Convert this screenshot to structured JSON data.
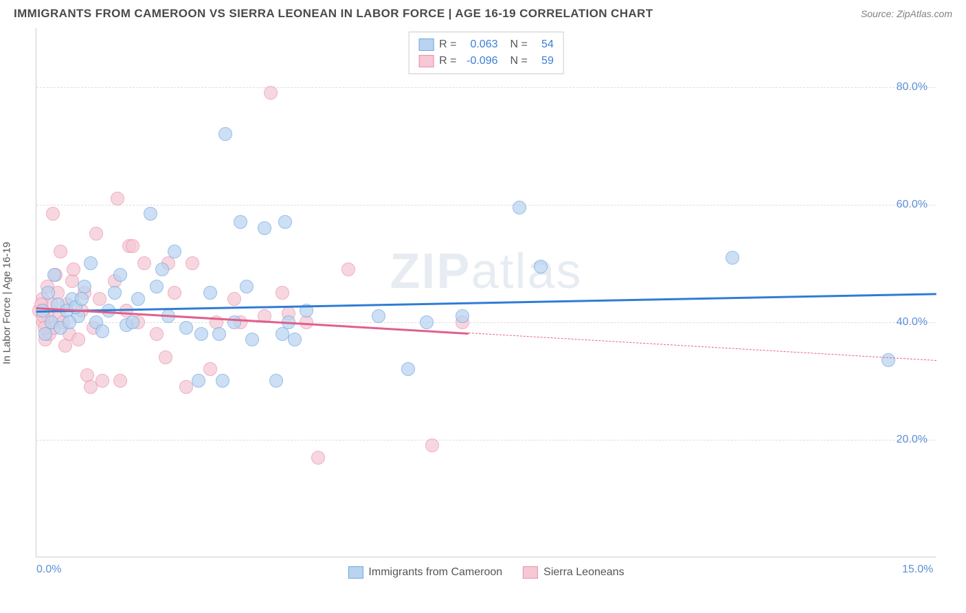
{
  "header": {
    "title": "IMMIGRANTS FROM CAMEROON VS SIERRA LEONEAN IN LABOR FORCE | AGE 16-19 CORRELATION CHART",
    "source": "Source: ZipAtlas.com"
  },
  "chart": {
    "type": "scatter",
    "ylabel": "In Labor Force | Age 16-19",
    "watermark": {
      "part1": "ZIP",
      "part2": "atlas"
    },
    "background_color": "#ffffff",
    "grid_color": "#dddddd",
    "axis_color": "#cccccc",
    "xlim": [
      0,
      15
    ],
    "ylim": [
      0,
      90
    ],
    "xticks": [
      {
        "value": 0,
        "label": "0.0%"
      },
      {
        "value": 15,
        "label": "15.0%"
      }
    ],
    "yticks": [
      {
        "value": 20,
        "label": "20.0%"
      },
      {
        "value": 40,
        "label": "40.0%"
      },
      {
        "value": 60,
        "label": "60.0%"
      },
      {
        "value": 80,
        "label": "80.0%"
      }
    ],
    "marker_radius": 10,
    "series": {
      "cameroon": {
        "label": "Immigrants from Cameroon",
        "fill_color": "#b9d3f0",
        "border_color": "#6fa6e0",
        "trend_color": "#2e7cd6",
        "trend": {
          "x1": 0,
          "y1": 42.0,
          "x2": 15,
          "y2": 45.0,
          "solid_until_x": 15
        },
        "points": [
          [
            0.1,
            42
          ],
          [
            0.15,
            38
          ],
          [
            0.2,
            45
          ],
          [
            0.25,
            40
          ],
          [
            0.3,
            48
          ],
          [
            0.35,
            43
          ],
          [
            0.4,
            39
          ],
          [
            0.6,
            44
          ],
          [
            0.7,
            41
          ],
          [
            0.8,
            46
          ],
          [
            0.9,
            50
          ],
          [
            1.0,
            40
          ],
          [
            1.1,
            38.5
          ],
          [
            1.3,
            45
          ],
          [
            1.4,
            48
          ],
          [
            1.5,
            39.5
          ],
          [
            1.7,
            44
          ],
          [
            1.9,
            58.5
          ],
          [
            2.0,
            46
          ],
          [
            2.2,
            41
          ],
          [
            2.3,
            52
          ],
          [
            2.5,
            39
          ],
          [
            2.7,
            30
          ],
          [
            2.75,
            38
          ],
          [
            2.9,
            45
          ],
          [
            3.05,
            38
          ],
          [
            3.1,
            30
          ],
          [
            3.15,
            72
          ],
          [
            3.3,
            40
          ],
          [
            3.4,
            57
          ],
          [
            3.5,
            46
          ],
          [
            3.6,
            37
          ],
          [
            3.8,
            56
          ],
          [
            4.0,
            30
          ],
          [
            4.1,
            38
          ],
          [
            4.15,
            57
          ],
          [
            4.2,
            40
          ],
          [
            4.3,
            37
          ],
          [
            4.5,
            42
          ],
          [
            5.7,
            41
          ],
          [
            6.2,
            32
          ],
          [
            6.5,
            40
          ],
          [
            7.1,
            41
          ],
          [
            8.05,
            59.5
          ],
          [
            8.4,
            49.5
          ],
          [
            11.6,
            51
          ],
          [
            14.2,
            33.5
          ],
          [
            0.5,
            42
          ],
          [
            0.55,
            40
          ],
          [
            0.65,
            42.5
          ],
          [
            0.75,
            44
          ],
          [
            1.2,
            42
          ],
          [
            1.6,
            40
          ],
          [
            2.1,
            49
          ]
        ]
      },
      "sierra": {
        "label": "Sierra Leoneans",
        "fill_color": "#f5c8d4",
        "border_color": "#eb8fab",
        "trend_color": "#e15f8a",
        "trend": {
          "x1": 0,
          "y1": 42.5,
          "x2": 15,
          "y2": 33.5,
          "solid_until_x": 7.2
        },
        "points": [
          [
            0.05,
            42
          ],
          [
            0.1,
            44
          ],
          [
            0.12,
            40
          ],
          [
            0.15,
            37
          ],
          [
            0.18,
            46
          ],
          [
            0.2,
            41
          ],
          [
            0.22,
            38
          ],
          [
            0.25,
            43
          ],
          [
            0.3,
            39
          ],
          [
            0.32,
            48
          ],
          [
            0.35,
            45
          ],
          [
            0.38,
            41
          ],
          [
            0.4,
            52
          ],
          [
            0.45,
            40
          ],
          [
            0.48,
            36
          ],
          [
            0.5,
            43
          ],
          [
            0.55,
            38
          ],
          [
            0.6,
            47
          ],
          [
            0.62,
            49
          ],
          [
            0.7,
            37
          ],
          [
            0.75,
            42
          ],
          [
            0.8,
            45
          ],
          [
            0.85,
            31
          ],
          [
            0.9,
            29
          ],
          [
            0.95,
            39
          ],
          [
            1.0,
            55
          ],
          [
            1.05,
            44
          ],
          [
            1.1,
            30
          ],
          [
            1.3,
            47
          ],
          [
            1.35,
            61
          ],
          [
            1.4,
            30
          ],
          [
            1.5,
            42
          ],
          [
            1.55,
            53
          ],
          [
            1.6,
            53
          ],
          [
            1.7,
            40
          ],
          [
            1.8,
            50
          ],
          [
            2.0,
            38
          ],
          [
            2.15,
            34
          ],
          [
            2.2,
            50
          ],
          [
            2.3,
            45
          ],
          [
            2.5,
            29
          ],
          [
            2.6,
            50
          ],
          [
            2.9,
            32
          ],
          [
            3.0,
            40
          ],
          [
            3.3,
            44
          ],
          [
            3.4,
            40
          ],
          [
            3.8,
            41
          ],
          [
            4.1,
            45
          ],
          [
            4.2,
            41.5
          ],
          [
            4.5,
            40
          ],
          [
            4.7,
            17
          ],
          [
            5.2,
            49
          ],
          [
            6.6,
            19
          ],
          [
            7.1,
            40
          ],
          [
            0.28,
            58.5
          ],
          [
            0.08,
            43
          ],
          [
            0.11,
            41
          ],
          [
            0.14,
            39
          ],
          [
            3.9,
            79
          ]
        ]
      }
    },
    "stats_box": {
      "rows": [
        {
          "swatch_fill": "#b9d3f0",
          "swatch_border": "#6fa6e0",
          "r_label": "R =",
          "r": "0.063",
          "n_label": "N =",
          "n": "54"
        },
        {
          "swatch_fill": "#f5c8d4",
          "swatch_border": "#eb8fab",
          "r_label": "R =",
          "r": "-0.096",
          "n_label": "N =",
          "n": "59"
        }
      ]
    },
    "legend_bottom": [
      {
        "swatch_fill": "#b9d3f0",
        "swatch_border": "#6fa6e0",
        "label": "Immigrants from Cameroon"
      },
      {
        "swatch_fill": "#f5c8d4",
        "swatch_border": "#eb8fab",
        "label": "Sierra Leoneans"
      }
    ]
  }
}
